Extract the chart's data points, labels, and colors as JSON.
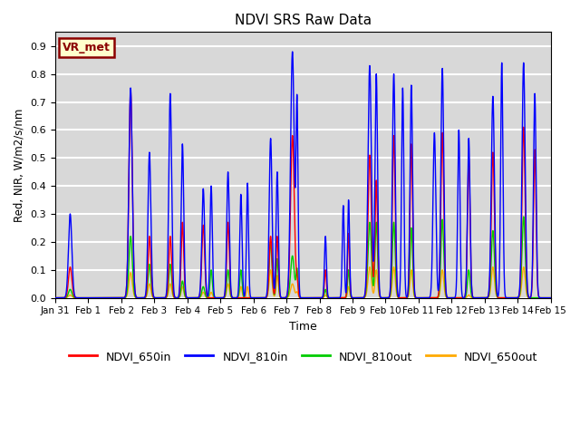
{
  "title": "NDVI SRS Raw Data",
  "xlabel": "Time",
  "ylabel": "Red, NIR, W/m2/s/nm",
  "ylim": [
    0.0,
    0.95
  ],
  "yticks": [
    0.0,
    0.1,
    0.2,
    0.3,
    0.4,
    0.5,
    0.6,
    0.7,
    0.8,
    0.9
  ],
  "xtick_labels": [
    "Jan 31",
    "Feb 1",
    "Feb 2",
    "Feb 3",
    "Feb 4",
    "Feb 5",
    "Feb 6",
    "Feb 7",
    "Feb 8",
    "Feb 9",
    "Feb 10",
    "Feb 11",
    "Feb 12",
    "Feb 13",
    "Feb 14",
    "Feb 15"
  ],
  "annotation_text": "VR_met",
  "annotation_color_bg": "#ffffcc",
  "annotation_color_border": "#8b0000",
  "legend_labels": [
    "NDVI_650in",
    "NDVI_810in",
    "NDVI_810out",
    "NDVI_650out"
  ],
  "legend_colors": [
    "#ff0000",
    "#0000ff",
    "#00cc00",
    "#ffaa00"
  ],
  "bg_color": "#d8d8d8",
  "grid_color": "#ffffff",
  "peak_info": [
    [
      0.45,
      0.12,
      0.3,
      0.11,
      0.03,
      0.01
    ],
    [
      2.28,
      0.12,
      0.75,
      0.74,
      0.22,
      0.09
    ],
    [
      2.85,
      0.1,
      0.52,
      0.22,
      0.12,
      0.05
    ],
    [
      3.48,
      0.1,
      0.73,
      0.22,
      0.12,
      0.05
    ],
    [
      3.85,
      0.09,
      0.55,
      0.27,
      0.06,
      0.04
    ],
    [
      4.48,
      0.1,
      0.39,
      0.26,
      0.04,
      0.02
    ],
    [
      4.72,
      0.08,
      0.4,
      0.0,
      0.1,
      0.02
    ],
    [
      5.23,
      0.09,
      0.45,
      0.27,
      0.1,
      0.05
    ],
    [
      5.62,
      0.08,
      0.37,
      0.0,
      0.1,
      0.04
    ],
    [
      5.82,
      0.07,
      0.41,
      0.0,
      0.0,
      0.04
    ],
    [
      6.52,
      0.1,
      0.57,
      0.22,
      0.2,
      0.1
    ],
    [
      6.72,
      0.08,
      0.45,
      0.22,
      0.14,
      0.08
    ],
    [
      7.18,
      0.13,
      0.88,
      0.58,
      0.15,
      0.05
    ],
    [
      7.32,
      0.07,
      0.69,
      0.06,
      0.1,
      0.02
    ],
    [
      8.18,
      0.07,
      0.22,
      0.1,
      0.03,
      0.01
    ],
    [
      8.72,
      0.07,
      0.33,
      0.0,
      0.0,
      0.0
    ],
    [
      8.88,
      0.07,
      0.35,
      0.23,
      0.1,
      0.04
    ],
    [
      9.52,
      0.12,
      0.83,
      0.51,
      0.27,
      0.11
    ],
    [
      9.72,
      0.09,
      0.8,
      0.42,
      0.27,
      0.1
    ],
    [
      10.25,
      0.1,
      0.8,
      0.58,
      0.27,
      0.11
    ],
    [
      10.52,
      0.08,
      0.75,
      0.0,
      0.0,
      0.0
    ],
    [
      10.78,
      0.09,
      0.76,
      0.55,
      0.25,
      0.1
    ],
    [
      11.48,
      0.1,
      0.59,
      0.0,
      0.0,
      0.0
    ],
    [
      11.72,
      0.1,
      0.82,
      0.59,
      0.28,
      0.1
    ],
    [
      12.22,
      0.08,
      0.6,
      0.0,
      0.0,
      0.0
    ],
    [
      12.52,
      0.09,
      0.57,
      0.5,
      0.1,
      0.01
    ],
    [
      13.25,
      0.11,
      0.72,
      0.52,
      0.24,
      0.11
    ],
    [
      13.52,
      0.08,
      0.84,
      0.0,
      0.0,
      0.0
    ],
    [
      14.18,
      0.11,
      0.84,
      0.61,
      0.29,
      0.11
    ],
    [
      14.52,
      0.09,
      0.73,
      0.53,
      0.0,
      0.0
    ]
  ]
}
